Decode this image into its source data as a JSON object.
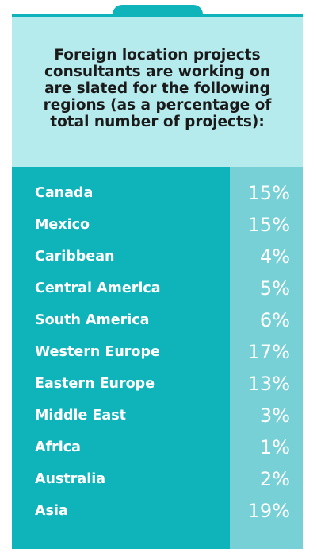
{
  "header": {
    "text": "Foreign location projects\nconsultants are working on\nare slated for the following\nregions (as a percentage of\ntotal number of projects):"
  },
  "colors": {
    "tab": "#0fb3ba",
    "header_bg": "#b6ebed",
    "label_bg": "#0fb3ba",
    "value_bg": "#77d0d5",
    "text_light": "#ffffff",
    "text_dark": "#1a1a1a"
  },
  "chart_data": {
    "type": "table",
    "title": "Foreign location projects consultants are working on are slated for the following regions (as a percentage of total number of projects):",
    "categories": [
      "Canada",
      "Mexico",
      "Caribbean",
      "Central America",
      "South America",
      "Western Europe",
      "Eastern Europe",
      "Middle East",
      "Africa",
      "Australia",
      "Asia"
    ],
    "values": [
      15,
      15,
      4,
      5,
      6,
      17,
      13,
      3,
      1,
      2,
      19
    ],
    "value_labels": [
      "15%",
      "15%",
      "4%",
      "5%",
      "6%",
      "17%",
      "13%",
      "3%",
      "1%",
      "2%",
      "19%"
    ],
    "unit": "%"
  }
}
